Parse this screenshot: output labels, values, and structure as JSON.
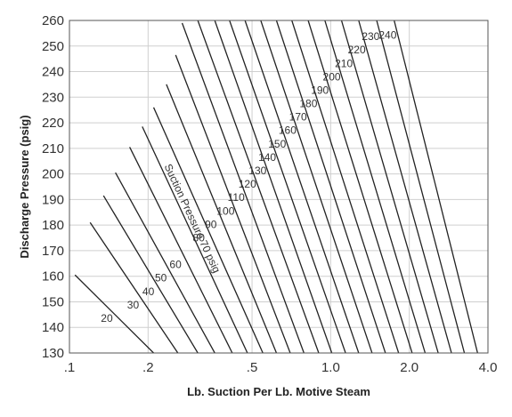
{
  "chart_data": {
    "type": "line",
    "title": "",
    "xlabel": "Lb. Suction Per Lb. Motive Steam",
    "ylabel": "Discharge Pressure (psig)",
    "x_scale": "log",
    "xlim": [
      0.1,
      4.0
    ],
    "ylim": [
      130,
      260
    ],
    "x_ticks": [
      0.1,
      0.2,
      0.5,
      1.0,
      2.0,
      4.0
    ],
    "x_tick_labels": [
      ".1",
      ".2",
      ".5",
      "1.0",
      "2.0",
      "4.0"
    ],
    "y_ticks": [
      130,
      140,
      150,
      160,
      170,
      180,
      190,
      200,
      210,
      220,
      230,
      240,
      250,
      260
    ],
    "y_tick_labels": [
      "130",
      "140",
      "150",
      "160",
      "170",
      "180",
      "190",
      "200",
      "210",
      "220",
      "230",
      "240",
      "250",
      "260"
    ],
    "grid": true,
    "legend": "none",
    "series": [
      {
        "name": "20",
        "label": "20",
        "x": [
          0.105,
          0.21
        ],
        "y": [
          160.5,
          130
        ]
      },
      {
        "name": "30",
        "label": "30",
        "x": [
          0.12,
          0.26
        ],
        "y": [
          181,
          130
        ]
      },
      {
        "name": "40",
        "label": "40",
        "x": [
          0.135,
          0.31
        ],
        "y": [
          191.5,
          130
        ]
      },
      {
        "name": "50",
        "label": "50",
        "x": [
          0.15,
          0.36
        ],
        "y": [
          200.5,
          130
        ]
      },
      {
        "name": "60",
        "label": "60",
        "x": [
          0.17,
          0.42
        ],
        "y": [
          210.5,
          130
        ]
      },
      {
        "name": "Suction Pressure 70 psig",
        "label": "Suction Pressure 70 psig",
        "x": [
          0.19,
          0.48
        ],
        "y": [
          218.5,
          130
        ]
      },
      {
        "name": "80",
        "label": "80",
        "x": [
          0.21,
          0.55
        ],
        "y": [
          226,
          130
        ]
      },
      {
        "name": "90",
        "label": "90",
        "x": [
          0.235,
          0.62
        ],
        "y": [
          235,
          130
        ]
      },
      {
        "name": "100",
        "label": "100",
        "x": [
          0.255,
          0.7
        ],
        "y": [
          246.5,
          130
        ]
      },
      {
        "name": "110",
        "label": "110",
        "x": [
          0.27,
          0.79
        ],
        "y": [
          259,
          130
        ]
      },
      {
        "name": "120",
        "label": "120",
        "x": [
          0.31,
          0.9
        ],
        "y": [
          260,
          130
        ]
      },
      {
        "name": "130",
        "label": "130",
        "x": [
          0.36,
          1.01
        ],
        "y": [
          260,
          130
        ]
      },
      {
        "name": "140",
        "label": "140",
        "x": [
          0.41,
          1.14
        ],
        "y": [
          260,
          130
        ]
      },
      {
        "name": "150",
        "label": "150",
        "x": [
          0.47,
          1.28
        ],
        "y": [
          260,
          130
        ]
      },
      {
        "name": "160",
        "label": "160",
        "x": [
          0.54,
          1.44
        ],
        "y": [
          260,
          130
        ]
      },
      {
        "name": "170",
        "label": "170",
        "x": [
          0.62,
          1.62
        ],
        "y": [
          260,
          130
        ]
      },
      {
        "name": "180",
        "label": "180",
        "x": [
          0.71,
          1.82
        ],
        "y": [
          260,
          130
        ]
      },
      {
        "name": "190",
        "label": "190",
        "x": [
          0.82,
          2.05
        ],
        "y": [
          260,
          130
        ]
      },
      {
        "name": "200",
        "label": "200",
        "x": [
          0.95,
          2.3
        ],
        "y": [
          260,
          130
        ]
      },
      {
        "name": "210",
        "label": "210",
        "x": [
          1.1,
          2.58
        ],
        "y": [
          260,
          130
        ]
      },
      {
        "name": "220",
        "label": "220",
        "x": [
          1.28,
          2.9
        ],
        "y": [
          260,
          130
        ]
      },
      {
        "name": "230",
        "label": "230",
        "x": [
          1.5,
          3.25
        ],
        "y": [
          260,
          130
        ]
      },
      {
        "name": "240",
        "label": "240",
        "x": [
          1.75,
          3.65
        ],
        "y": [
          260,
          130
        ]
      }
    ]
  }
}
